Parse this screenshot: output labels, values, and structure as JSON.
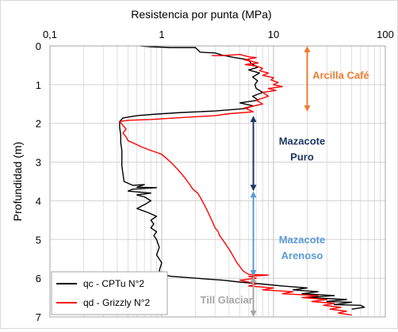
{
  "chart_data": {
    "type": "line",
    "title": "Resistencia por punta  (MPa)",
    "xlabel": "Resistencia por punta  (MPa)",
    "ylabel": "Profundidad (m)",
    "x_scale": "log",
    "xlim": [
      0.1,
      100
    ],
    "ylim": [
      0,
      7
    ],
    "y_inverted": true,
    "x_tick_labels": [
      "0,1",
      "1",
      "10",
      "100"
    ],
    "y_tick_labels": [
      "0",
      "1",
      "2",
      "3",
      "4",
      "5",
      "6",
      "7"
    ],
    "grid": true,
    "legend_position": "bottom-left",
    "series": [
      {
        "name": "qc - CPTu N°2",
        "color": "#000000",
        "points": [
          [
            0.65,
            0.0
          ],
          [
            0.8,
            0.02
          ],
          [
            1.2,
            0.04
          ],
          [
            2.0,
            0.04
          ],
          [
            2.1,
            0.1
          ],
          [
            2.2,
            0.16
          ],
          [
            2.5,
            0.17
          ],
          [
            3.0,
            0.18
          ],
          [
            3.5,
            0.24
          ],
          [
            4.5,
            0.3
          ],
          [
            6.0,
            0.36
          ],
          [
            6.3,
            0.45
          ],
          [
            7.2,
            0.55
          ],
          [
            6.0,
            0.62
          ],
          [
            7.5,
            0.7
          ],
          [
            6.5,
            0.8
          ],
          [
            7.2,
            0.9
          ],
          [
            6.8,
            1.0
          ],
          [
            7.0,
            1.1
          ],
          [
            8.0,
            1.2
          ],
          [
            6.5,
            1.3
          ],
          [
            7.3,
            1.4
          ],
          [
            5.0,
            1.47
          ],
          [
            6.6,
            1.55
          ],
          [
            5.5,
            1.62
          ],
          [
            3.0,
            1.68
          ],
          [
            1.5,
            1.72
          ],
          [
            0.9,
            1.76
          ],
          [
            0.6,
            1.8
          ],
          [
            0.45,
            1.86
          ],
          [
            0.42,
            1.95
          ],
          [
            0.42,
            2.1
          ],
          [
            0.43,
            2.3
          ],
          [
            0.43,
            2.5
          ],
          [
            0.44,
            2.7
          ],
          [
            0.44,
            2.9
          ],
          [
            0.44,
            3.1
          ],
          [
            0.45,
            3.3
          ],
          [
            0.46,
            3.5
          ],
          [
            0.55,
            3.6
          ],
          [
            0.7,
            3.58
          ],
          [
            0.6,
            3.65
          ],
          [
            0.9,
            3.66
          ],
          [
            0.55,
            3.7
          ],
          [
            0.5,
            3.75
          ],
          [
            0.8,
            3.8
          ],
          [
            0.6,
            3.85
          ],
          [
            0.7,
            3.9
          ],
          [
            0.8,
            4.0
          ],
          [
            0.7,
            4.1
          ],
          [
            0.6,
            4.2
          ],
          [
            0.75,
            4.3
          ],
          [
            0.9,
            4.4
          ],
          [
            0.8,
            4.5
          ],
          [
            0.85,
            4.6
          ],
          [
            0.8,
            4.7
          ],
          [
            0.9,
            4.8
          ],
          [
            0.85,
            4.9
          ],
          [
            0.9,
            5.0
          ],
          [
            0.95,
            5.2
          ],
          [
            0.9,
            5.4
          ],
          [
            1.0,
            5.6
          ],
          [
            0.95,
            5.8
          ],
          [
            1.0,
            5.9
          ],
          [
            1.2,
            5.95
          ],
          [
            2.0,
            6.0
          ],
          [
            3.5,
            6.05
          ],
          [
            5.0,
            6.1
          ],
          [
            8.0,
            6.15
          ],
          [
            12.0,
            6.2
          ],
          [
            20.0,
            6.25
          ],
          [
            15.0,
            6.3
          ],
          [
            25.0,
            6.35
          ],
          [
            18.0,
            6.4
          ],
          [
            35.0,
            6.45
          ],
          [
            20.0,
            6.5
          ],
          [
            45.0,
            6.55
          ],
          [
            30.0,
            6.6
          ],
          [
            50.0,
            6.62
          ],
          [
            35.0,
            6.68
          ],
          [
            60.0,
            6.7
          ],
          [
            65.0,
            6.75
          ],
          [
            50.0,
            6.8
          ]
        ]
      },
      {
        "name": "qd - Grizzly N°2",
        "color": "#ff0000",
        "points": [
          [
            2.8,
            0.25
          ],
          [
            3.5,
            0.25
          ],
          [
            5.0,
            0.22
          ],
          [
            6.0,
            0.28
          ],
          [
            7.0,
            0.3
          ],
          [
            5.5,
            0.36
          ],
          [
            6.5,
            0.4
          ],
          [
            7.3,
            0.44
          ],
          [
            5.6,
            0.48
          ],
          [
            7.0,
            0.52
          ],
          [
            8.0,
            0.58
          ],
          [
            7.5,
            0.64
          ],
          [
            9.0,
            0.7
          ],
          [
            8.0,
            0.76
          ],
          [
            10.0,
            0.82
          ],
          [
            9.5,
            0.88
          ],
          [
            11.0,
            0.94
          ],
          [
            10.0,
            1.0
          ],
          [
            12.0,
            1.05
          ],
          [
            9.0,
            1.1
          ],
          [
            10.5,
            1.15
          ],
          [
            8.0,
            1.2
          ],
          [
            9.0,
            1.3
          ],
          [
            7.0,
            1.4
          ],
          [
            8.0,
            1.5
          ],
          [
            5.5,
            1.6
          ],
          [
            6.6,
            1.7
          ],
          [
            4.0,
            1.75
          ],
          [
            3.0,
            1.8
          ],
          [
            1.5,
            1.85
          ],
          [
            0.8,
            1.9
          ],
          [
            0.5,
            1.92
          ],
          [
            0.42,
            1.95
          ],
          [
            0.45,
            2.05
          ],
          [
            0.48,
            2.15
          ],
          [
            0.45,
            2.25
          ],
          [
            0.48,
            2.35
          ],
          [
            0.5,
            2.45
          ],
          [
            0.55,
            2.5
          ],
          [
            0.6,
            2.55
          ],
          [
            0.65,
            2.6
          ],
          [
            0.72,
            2.65
          ],
          [
            0.8,
            2.7
          ],
          [
            0.9,
            2.75
          ],
          [
            1.0,
            2.8
          ],
          [
            1.1,
            2.9
          ],
          [
            1.2,
            3.0
          ],
          [
            1.3,
            3.1
          ],
          [
            1.4,
            3.2
          ],
          [
            1.5,
            3.3
          ],
          [
            1.6,
            3.4
          ],
          [
            1.7,
            3.5
          ],
          [
            1.8,
            3.6
          ],
          [
            1.9,
            3.7
          ],
          [
            2.1,
            3.8
          ],
          [
            2.2,
            3.9
          ],
          [
            2.3,
            4.0
          ],
          [
            2.4,
            4.1
          ],
          [
            2.5,
            4.2
          ],
          [
            2.6,
            4.3
          ],
          [
            2.7,
            4.4
          ],
          [
            2.8,
            4.5
          ],
          [
            2.9,
            4.6
          ],
          [
            3.0,
            4.7
          ],
          [
            3.2,
            4.8
          ],
          [
            3.3,
            4.9
          ],
          [
            3.5,
            5.0
          ],
          [
            3.7,
            5.1
          ],
          [
            3.9,
            5.2
          ],
          [
            4.1,
            5.3
          ],
          [
            4.3,
            5.4
          ],
          [
            4.5,
            5.5
          ],
          [
            4.7,
            5.6
          ],
          [
            5.0,
            5.7
          ],
          [
            5.3,
            5.8
          ],
          [
            5.6,
            5.85
          ],
          [
            6.0,
            5.9
          ],
          [
            9.0,
            5.92
          ],
          [
            6.0,
            5.95
          ],
          [
            7.0,
            6.0
          ],
          [
            5.0,
            6.05
          ],
          [
            6.0,
            6.1
          ],
          [
            7.0,
            6.15
          ],
          [
            6.0,
            6.2
          ],
          [
            10.0,
            6.25
          ],
          [
            8.0,
            6.3
          ],
          [
            15.0,
            6.35
          ],
          [
            12.0,
            6.4
          ],
          [
            25.0,
            6.45
          ],
          [
            18.0,
            6.5
          ],
          [
            30.0,
            6.55
          ],
          [
            22.0,
            6.6
          ],
          [
            35.0,
            6.65
          ],
          [
            28.0,
            6.7
          ],
          [
            40.0,
            6.75
          ],
          [
            32.0,
            6.8
          ],
          [
            45.0,
            6.85
          ],
          [
            38.0,
            6.9
          ],
          [
            50.0,
            6.95
          ]
        ]
      }
    ],
    "annotations": [
      {
        "lines": [
          "Arcilla Café"
        ],
        "color": "#ed7d31",
        "x": 40,
        "y": 0.75,
        "arrow_x": 20,
        "arrow_y": [
          0.0,
          1.7
        ]
      },
      {
        "lines": [
          "Mazacote",
          "Puro"
        ],
        "color": "#1f3864",
        "x": 18,
        "y": 2.65,
        "arrow_x": 6.6,
        "arrow_y": [
          1.8,
          3.75
        ]
      },
      {
        "lines": [
          "Mazacote",
          "Arenoso"
        ],
        "color": "#5b9bd5",
        "x": 18,
        "y": 5.2,
        "arrow_x": 6.6,
        "arrow_y": [
          3.75,
          5.95
        ]
      },
      {
        "lines": [
          "Till Glaciar"
        ],
        "color": "#a6a6a6",
        "x": 3.8,
        "y": 6.55,
        "arrow_x": 6.6,
        "arrow_y": [
          5.95,
          7.0
        ]
      }
    ]
  }
}
